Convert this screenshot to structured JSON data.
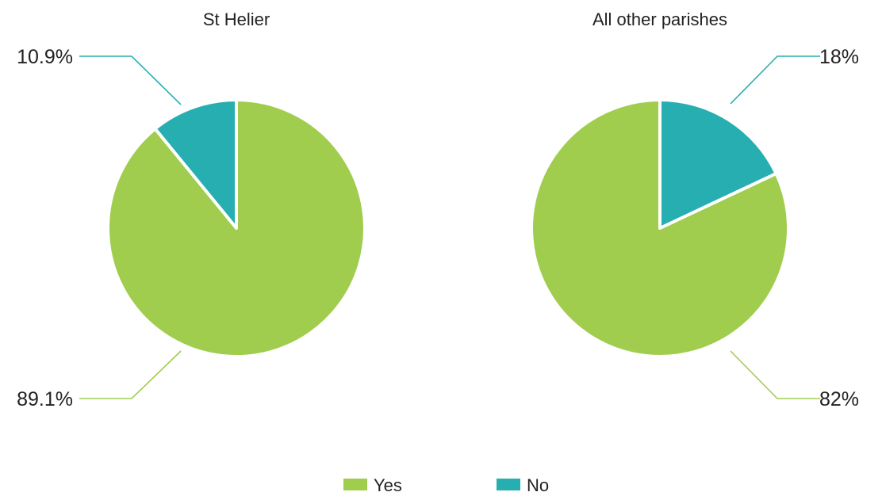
{
  "chart_data": [
    {
      "type": "pie",
      "title": "St Helier",
      "slices": [
        {
          "label": "Yes",
          "value": 89.1,
          "display": "89.1%",
          "color": "#a0cd4e"
        },
        {
          "label": "No",
          "value": 10.9,
          "display": "10.9%",
          "color": "#27aeb0"
        }
      ]
    },
    {
      "type": "pie",
      "title": "All other parishes",
      "slices": [
        {
          "label": "Yes",
          "value": 82,
          "display": "82%",
          "color": "#a0cd4e"
        },
        {
          "label": "No",
          "value": 18,
          "display": "18%",
          "color": "#27aeb0"
        }
      ]
    }
  ],
  "legend": {
    "placement": "bottom-center",
    "items": [
      {
        "label": "Yes",
        "color": "#a0cd4e"
      },
      {
        "label": "No",
        "color": "#27aeb0"
      }
    ]
  }
}
